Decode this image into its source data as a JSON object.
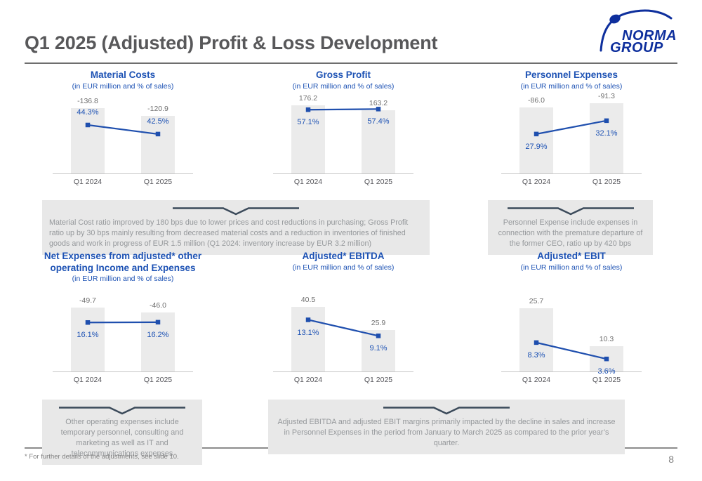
{
  "header": {
    "title": "Q1 2025 (Adjusted) Profit & Loss Development",
    "logo": {
      "line1": "NORMA",
      "line2": "GROUP"
    }
  },
  "colors": {
    "chart_blue": "#1d52b4",
    "line_blue": "#1f4fae",
    "logo_blue": "#0e2f9d",
    "bar_gray": "#ebebeb",
    "box_gray": "#e8e8e8",
    "box_text_gray": "#95989b",
    "chevron_slate": "#3b4a5a",
    "heading_gray": "#58585a"
  },
  "chart_data": [
    {
      "type": "bar",
      "title": "Material Costs",
      "subtitle": "(in EUR million and % of sales)",
      "categories": [
        "Q1 2024",
        "Q1 2025"
      ],
      "bars": {
        "values": [
          -136.8,
          -120.9
        ],
        "labels": [
          "-136.8",
          "-120.9"
        ],
        "axis_max_abs": 162
      },
      "line": {
        "values": [
          44.3,
          42.5
        ],
        "labels": [
          "44.3%",
          "42.5%"
        ],
        "axis_range": [
          34.7,
          50.0
        ],
        "label_position": "above"
      }
    },
    {
      "type": "bar",
      "title": "Gross Profit",
      "subtitle": "(in EUR million and % of sales)",
      "categories": [
        "Q1 2024",
        "Q1 2025"
      ],
      "bars": {
        "values": [
          176.2,
          163.2
        ],
        "labels": [
          "176.2",
          "163.2"
        ],
        "axis_max_abs": 199
      },
      "line": {
        "values": [
          57.1,
          57.4
        ],
        "labels": [
          "57.1%",
          "57.4%"
        ],
        "axis_range": [
          26.9,
          63.5
        ],
        "label_position": "below"
      }
    },
    {
      "type": "bar",
      "title": "Personnel Expenses",
      "subtitle": "(in EUR million and % of sales)",
      "categories": [
        "Q1 2024",
        "Q1 2025"
      ],
      "bars": {
        "values": [
          -86.0,
          -91.3
        ],
        "labels": [
          "-86.0",
          "-91.3"
        ],
        "axis_max_abs": 100.5
      },
      "line": {
        "values": [
          27.9,
          32.1
        ],
        "labels": [
          "27.9%",
          "32.1%"
        ],
        "axis_range": [
          15.5,
          39.8
        ],
        "label_position": "below"
      }
    },
    {
      "type": "bar",
      "title": "Net Expenses from adjusted* other\noperating Income and Expenses",
      "subtitle": "(in EUR million and % of sales)",
      "categories": [
        "Q1 2024",
        "Q1 2025"
      ],
      "bars": {
        "values": [
          -49.7,
          -46.0
        ],
        "labels": [
          "-49.7",
          "-46.0"
        ],
        "axis_max_abs": 60
      },
      "line": {
        "values": [
          16.1,
          16.2
        ],
        "labels": [
          "16.1%",
          "16.2%"
        ],
        "axis_range": [
          0,
          25.4
        ],
        "label_position": "below"
      }
    },
    {
      "type": "bar",
      "title": "Adjusted* EBITDA",
      "subtitle": "(in EUR million and % of sales)",
      "categories": [
        "Q1 2024",
        "Q1 2025"
      ],
      "bars": {
        "values": [
          40.5,
          25.9
        ],
        "labels": [
          "40.5",
          "25.9"
        ],
        "axis_max_abs": 48.3
      },
      "line": {
        "values": [
          13.1,
          9.1
        ],
        "labels": [
          "13.1%",
          "9.1%"
        ],
        "axis_range": [
          0.2,
          19.5
        ],
        "label_position": "below"
      }
    },
    {
      "type": "bar",
      "title": "Adjusted* EBIT",
      "subtitle": "(in EUR million and % of sales)",
      "categories": [
        "Q1 2024",
        "Q1 2025"
      ],
      "bars": {
        "values": [
          25.7,
          10.3
        ],
        "labels": [
          "25.7",
          "10.3"
        ],
        "axis_max_abs": 31.4
      },
      "line": {
        "values": [
          8.3,
          3.6
        ],
        "labels": [
          "8.3%",
          "3.6%"
        ],
        "axis_range": [
          0,
          22.2
        ],
        "label_position": "below"
      }
    }
  ],
  "callouts": [
    {
      "text": "Material Cost ratio improved by 180 bps due to lower prices and cost reductions in purchasing; Gross Profit ratio up by 30 bps mainly resulting from decreased material costs and a reduction in inventories of finished goods and work in progress of EUR 1.5 million (Q1 2024: inventory increase by EUR 3.2 million)"
    },
    {
      "text": "Personnel Expense include expenses in connection with the premature departure of the former CEO, ratio up by 420 bps"
    },
    {
      "text": "Other operating expenses include temporary personnel, consulting and marketing as well as IT and telecommunications expenses"
    },
    {
      "text": "Adjusted EBITDA and adjusted EBIT margins primarily impacted by the decline in sales and increase in Personnel Expenses in the period from January to March 2025 as compared to the prior year’s quarter."
    }
  ],
  "footer": {
    "note": "* For further details of the adjustments, see slide 10.",
    "page_number": "8"
  }
}
